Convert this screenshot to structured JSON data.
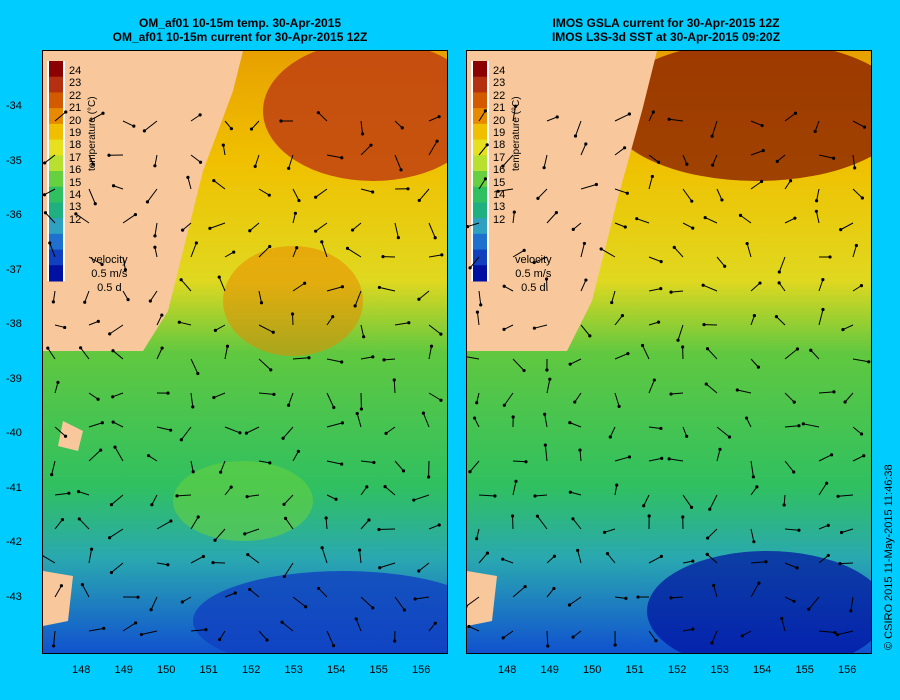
{
  "panels": [
    {
      "id": "left",
      "title_line1": "OM_af01 10-15m temp. 30-Apr-2015",
      "title_line2": "OM_af01 10-15m current for 30-Apr-2015 12Z"
    },
    {
      "id": "right",
      "title_line1": "IMOS GSLA current for 30-Apr-2015 12Z",
      "title_line2": "IMOS L3S-3d SST at 30-Apr-2015 09:20Z"
    }
  ],
  "axes": {
    "lat_ticks": [
      "-34",
      "-35",
      "-36",
      "-37",
      "-38",
      "-39",
      "-40",
      "-41",
      "-42",
      "-43"
    ],
    "lon_ticks": [
      "148",
      "149",
      "150",
      "151",
      "152",
      "153",
      "154",
      "155",
      "156"
    ]
  },
  "colorbar": {
    "labels": [
      "24",
      "23",
      "22",
      "21",
      "20",
      "19",
      "18",
      "17",
      "16",
      "15",
      "14",
      "13",
      "12"
    ],
    "title": "temperature (°C)",
    "colors": [
      "#8b0000",
      "#b53010",
      "#d45a00",
      "#e88a00",
      "#f0c000",
      "#e6e020",
      "#b8e030",
      "#66d040",
      "#30c060",
      "#20b080",
      "#30a0c0",
      "#2070d0",
      "#1040c0",
      "#0010a0"
    ]
  },
  "legend": {
    "title": "velocity",
    "speed": "0.5 m/s",
    "time": "0.5 d"
  },
  "credit": "© CSIRO 2015  11-May-2015 11:46:38",
  "palette": {
    "background": "#00ccff",
    "land": "#f8c89c",
    "nodata": "#c8a890"
  }
}
